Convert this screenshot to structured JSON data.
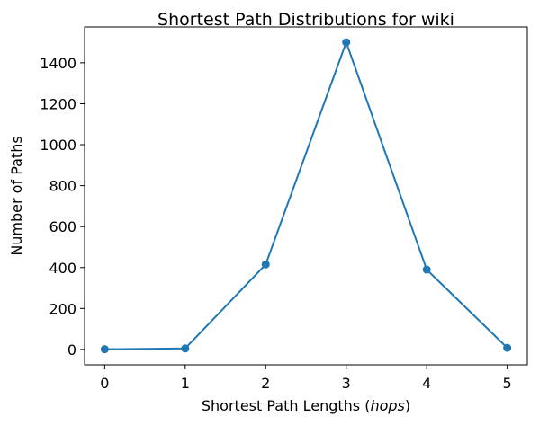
{
  "chart_data": {
    "type": "line",
    "title": "Shortest Path Distributions for wiki",
    "xlabel_plain": "Shortest Path Lengths (",
    "xlabel_italic": "hops",
    "xlabel_close": ")",
    "ylabel": "Number of Paths",
    "x": [
      0,
      1,
      2,
      3,
      4,
      5
    ],
    "series": [
      {
        "values": [
          1,
          5,
          415,
          1500,
          390,
          8
        ]
      }
    ],
    "xlim": [
      -0.25,
      5.25
    ],
    "ylim": [
      -75,
      1575
    ],
    "xticks": [
      "0",
      "1",
      "2",
      "3",
      "4",
      "5"
    ],
    "yticks": [
      "0",
      "200",
      "400",
      "600",
      "800",
      "1000",
      "1200",
      "1400"
    ],
    "ytick_values": [
      0,
      200,
      400,
      600,
      800,
      1000,
      1200,
      1400
    ],
    "grid": false,
    "legend": "none",
    "color": "#1f77b4"
  }
}
